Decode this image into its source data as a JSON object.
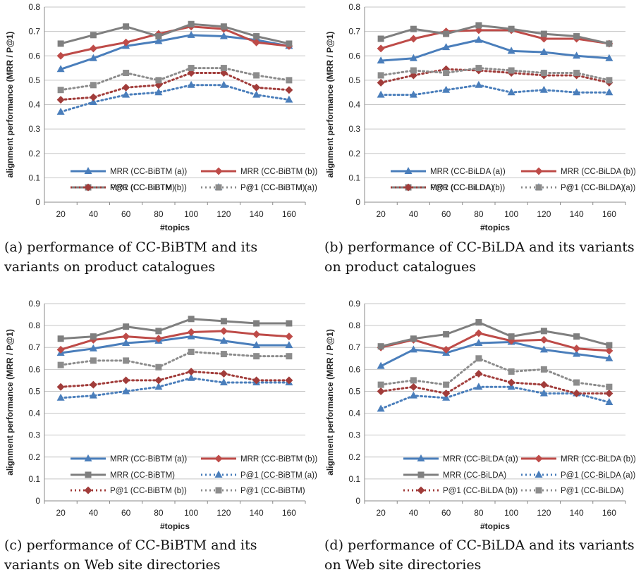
{
  "captions": [
    "(a) performance of CC-BiBTM and its variants on product catalogues",
    "(b) performance of CC-BiLDA and its variants on product catalogues",
    "(c) performance of CC-BiBTM and its variants on Web site directories",
    "(d) performance of CC-BiLDA and its variants on Web site directories"
  ],
  "styles": {
    "blue": "#4a7ebb",
    "red": "#be4b48",
    "gray": "#7f7f7f",
    "blue_dot": "#4a7ebb",
    "red_dot": "#a13c3a",
    "gray_dot": "#8c8c8c"
  },
  "chart_data": [
    {
      "type": "line",
      "xlabel": "#topics",
      "ylabel": "alignment performance (MRR / P@1)",
      "x": [
        20,
        40,
        60,
        80,
        100,
        120,
        140,
        160
      ],
      "ylim": [
        0,
        0.8
      ],
      "yticks": [
        "0",
        "0.1",
        "0.2",
        "0.3",
        "0.4",
        "0.5",
        "0.6",
        "0.7",
        "0.8"
      ],
      "grid": true,
      "legend_position": "bottom",
      "series": [
        {
          "name": "MRR (CC-BiBTM (a))",
          "values": [
            0.545,
            0.59,
            0.64,
            0.66,
            0.685,
            0.68,
            0.665,
            0.64
          ]
        },
        {
          "name": "MRR (CC-BiBTM (b))",
          "values": [
            0.6,
            0.63,
            0.655,
            0.69,
            0.72,
            0.71,
            0.655,
            0.64
          ]
        },
        {
          "name": "MRR (CC-BiBTM)",
          "values": [
            0.65,
            0.685,
            0.72,
            0.68,
            0.73,
            0.72,
            0.68,
            0.65
          ]
        },
        {
          "name": "P@1 (CC-BiBTM (a))",
          "values": [
            0.37,
            0.41,
            0.44,
            0.45,
            0.48,
            0.48,
            0.44,
            0.42
          ]
        },
        {
          "name": "P@1 (CC-BiBTM (b))",
          "values": [
            0.42,
            0.43,
            0.47,
            0.48,
            0.53,
            0.53,
            0.47,
            0.46
          ]
        },
        {
          "name": "P@1 (CC-BiBTM)",
          "values": [
            0.46,
            0.48,
            0.53,
            0.5,
            0.55,
            0.55,
            0.52,
            0.5
          ]
        }
      ]
    },
    {
      "type": "line",
      "xlabel": "#topics",
      "ylabel": "alignment performance (MRR / P@1)",
      "x": [
        20,
        40,
        60,
        80,
        100,
        120,
        140,
        160
      ],
      "ylim": [
        0,
        0.8
      ],
      "yticks": [
        "0",
        "0.1",
        "0.2",
        "0.3",
        "0.4",
        "0.5",
        "0.6",
        "0.7",
        "0.8"
      ],
      "grid": true,
      "legend_position": "bottom",
      "series": [
        {
          "name": "MRR (CC-BiLDA (a))",
          "values": [
            0.58,
            0.59,
            0.635,
            0.665,
            0.62,
            0.615,
            0.6,
            0.59
          ]
        },
        {
          "name": "MRR (CC-BiLDA (b))",
          "values": [
            0.63,
            0.67,
            0.7,
            0.705,
            0.705,
            0.67,
            0.67,
            0.65
          ]
        },
        {
          "name": "MRR (CC-BiLDA)",
          "values": [
            0.67,
            0.71,
            0.69,
            0.725,
            0.71,
            0.69,
            0.68,
            0.65
          ]
        },
        {
          "name": "P@1 (CC-BiLDA (a))",
          "values": [
            0.44,
            0.44,
            0.46,
            0.48,
            0.45,
            0.46,
            0.45,
            0.45
          ]
        },
        {
          "name": "P@1 (CC-BiLDA (b))",
          "values": [
            0.49,
            0.52,
            0.545,
            0.54,
            0.53,
            0.52,
            0.52,
            0.49
          ]
        },
        {
          "name": "P@1 (CC-BiLDA)",
          "values": [
            0.52,
            0.54,
            0.53,
            0.55,
            0.54,
            0.53,
            0.53,
            0.5
          ]
        }
      ]
    },
    {
      "type": "line",
      "xlabel": "#topics",
      "ylabel": "alignment performance (MRR / P@1)",
      "x": [
        20,
        40,
        60,
        80,
        100,
        120,
        140,
        160
      ],
      "ylim": [
        0,
        0.9
      ],
      "yticks": [
        "0",
        "0.1",
        "0.2",
        "0.3",
        "0.4",
        "0.5",
        "0.6",
        "0.7",
        "0.8",
        "0.9"
      ],
      "grid": true,
      "legend_position": "bottom",
      "series": [
        {
          "name": "MRR (CC-BiBTM (a))",
          "values": [
            0.675,
            0.695,
            0.72,
            0.73,
            0.75,
            0.73,
            0.71,
            0.71
          ]
        },
        {
          "name": "MRR (CC-BiBTM (b))",
          "values": [
            0.69,
            0.735,
            0.75,
            0.74,
            0.77,
            0.775,
            0.76,
            0.75
          ]
        },
        {
          "name": "MRR (CC-BiBTM)",
          "values": [
            0.74,
            0.75,
            0.795,
            0.775,
            0.83,
            0.82,
            0.81,
            0.81
          ]
        },
        {
          "name": "P@1 (CC-BiBTM (a))",
          "values": [
            0.47,
            0.48,
            0.5,
            0.52,
            0.56,
            0.54,
            0.54,
            0.54
          ]
        },
        {
          "name": "P@1 (CC-BiBTM (b))",
          "values": [
            0.52,
            0.53,
            0.55,
            0.55,
            0.59,
            0.58,
            0.55,
            0.55
          ]
        },
        {
          "name": "P@1 (CC-BiBTM)",
          "values": [
            0.62,
            0.64,
            0.64,
            0.61,
            0.68,
            0.67,
            0.66,
            0.66
          ]
        }
      ]
    },
    {
      "type": "line",
      "xlabel": "#topics",
      "ylabel": "alignment performance (MRR / P@1)",
      "x": [
        20,
        40,
        60,
        80,
        100,
        120,
        140,
        160
      ],
      "ylim": [
        0,
        0.9
      ],
      "yticks": [
        "0",
        "0.1",
        "0.2",
        "0.3",
        "0.4",
        "0.5",
        "0.6",
        "0.7",
        "0.8",
        "0.9"
      ],
      "grid": true,
      "legend_position": "bottom",
      "series": [
        {
          "name": "MRR (CC-BiLDA (a))",
          "values": [
            0.615,
            0.69,
            0.675,
            0.72,
            0.725,
            0.69,
            0.67,
            0.65
          ]
        },
        {
          "name": "MRR (CC-BiLDA (b))",
          "values": [
            0.7,
            0.735,
            0.69,
            0.765,
            0.73,
            0.735,
            0.695,
            0.685
          ]
        },
        {
          "name": "MRR (CC-BiLDA)",
          "values": [
            0.705,
            0.74,
            0.76,
            0.815,
            0.75,
            0.775,
            0.75,
            0.71
          ]
        },
        {
          "name": "P@1 (CC-BiLDA (a))",
          "values": [
            0.42,
            0.48,
            0.47,
            0.52,
            0.52,
            0.49,
            0.49,
            0.45
          ]
        },
        {
          "name": "P@1 (CC-BiLDA (b))",
          "values": [
            0.5,
            0.52,
            0.49,
            0.58,
            0.54,
            0.53,
            0.49,
            0.49
          ]
        },
        {
          "name": "P@1 (CC-BiLDA)",
          "values": [
            0.53,
            0.55,
            0.53,
            0.65,
            0.59,
            0.6,
            0.54,
            0.52
          ]
        }
      ]
    }
  ]
}
